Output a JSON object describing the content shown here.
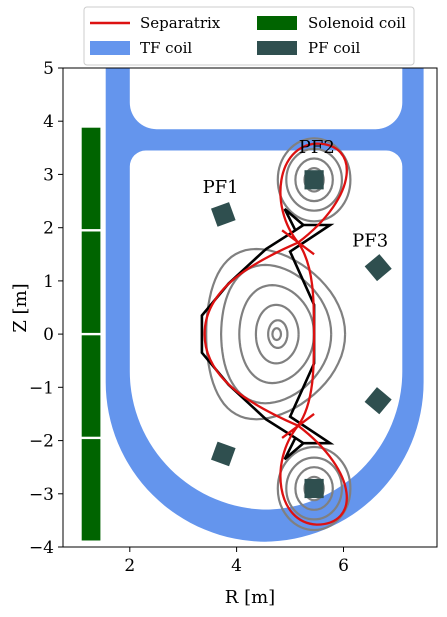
{
  "colors": {
    "separatrix": "#dd1111",
    "tf_coil": "#6495ed",
    "solenoid": "#006400",
    "pf_coil": "#2f4f4f",
    "flux_contour": "#808080",
    "wall": "#000000"
  },
  "legend": {
    "placement": "top-center",
    "entries": [
      {
        "label": "Separatrix",
        "kind": "line",
        "color": "#dd1111"
      },
      {
        "label": "Solenoid coil",
        "kind": "patch",
        "color": "#006400"
      },
      {
        "label": "TF coil",
        "kind": "patch",
        "color": "#6495ed"
      },
      {
        "label": "PF coil",
        "kind": "patch",
        "color": "#2f4f4f"
      }
    ]
  },
  "axes": {
    "xlabel": "R [m]",
    "ylabel": "Z [m]",
    "xlim": [
      0.75,
      7.75
    ],
    "ylim": [
      -4,
      5
    ],
    "xticks": [
      2,
      4,
      6
    ],
    "yticks": [
      -4,
      -3,
      -2,
      -1,
      0,
      1,
      2,
      3,
      4,
      5
    ]
  },
  "pf_coils": [
    {
      "name": "PF1",
      "r": 3.75,
      "z": 2.25,
      "angle": -20,
      "show_label": true,
      "label_r": 3.7,
      "label_z": 2.65
    },
    {
      "name": "PF2",
      "r": 5.45,
      "z": 2.9,
      "angle": 0,
      "show_label": true,
      "label_r": 5.5,
      "label_z": 3.4
    },
    {
      "name": "PF3",
      "r": 6.65,
      "z": 1.25,
      "angle": -40,
      "show_label": true,
      "label_r": 6.5,
      "label_z": 1.65
    },
    {
      "name": "",
      "r": 6.65,
      "z": -1.25,
      "angle": 40,
      "show_label": false
    },
    {
      "name": "",
      "r": 5.45,
      "z": -2.9,
      "angle": 0,
      "show_label": false
    },
    {
      "name": "",
      "r": 3.75,
      "z": -2.25,
      "angle": 20,
      "show_label": false
    }
  ],
  "solenoid": {
    "r_min": 1.1,
    "r_max": 1.45,
    "z_min": -3.9,
    "z_max": 3.9,
    "segments": 4
  },
  "tf_coil": {
    "outer": {
      "r_in": 1.55,
      "r_out": 7.5,
      "z_top": 5.0,
      "z_bottom": -3.9,
      "corner_radius_top": 0.6,
      "corner_radius_bottom": 3.0
    },
    "inner": {
      "r_in": 2.0,
      "r_out": 7.1,
      "z_top": 3.45,
      "z_bottom": -3.3,
      "corner_radius_top": 0.3,
      "corner_radius_bottom": 2.6
    },
    "top_notch": {
      "r_in": 2.0,
      "r_out": 7.1,
      "z_min": 3.85,
      "z_max": 5.0,
      "corner_radius": 0.5
    }
  },
  "plasma": {
    "axis": {
      "r": 4.75,
      "z": 0.0
    },
    "xpoint_upper": {
      "r": 5.15,
      "z": 1.72
    },
    "xpoint_lower": {
      "r": 5.15,
      "z": -1.72
    }
  }
}
